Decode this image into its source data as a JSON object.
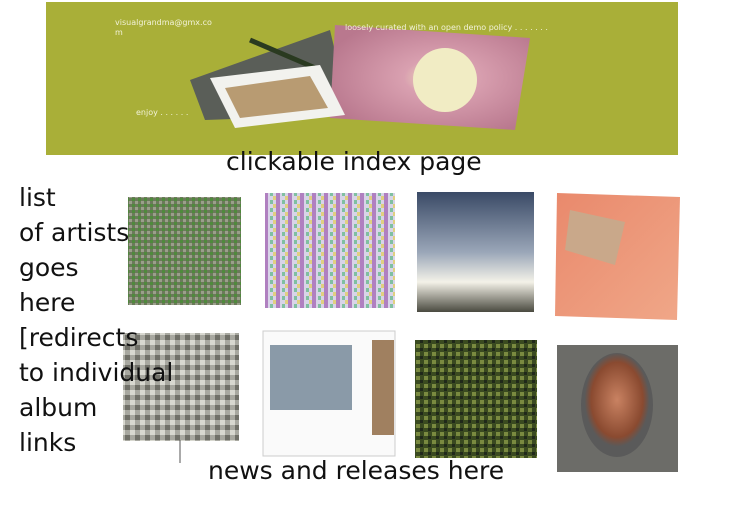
{
  "header": {
    "email_lines": [
      "visualgrandma@gmx.co",
      "m"
    ],
    "tagline": "loosely curated with an open demo policy . . . . . . .",
    "enjoy": "enjoy . . . . . ."
  },
  "caption_top": "clickable index page",
  "sidebar": {
    "lines": [
      "list",
      "of artists",
      "goes",
      "here",
      "[redirects",
      "to individual",
      "album",
      "links"
    ]
  },
  "caption_bottom": "news and releases here"
}
